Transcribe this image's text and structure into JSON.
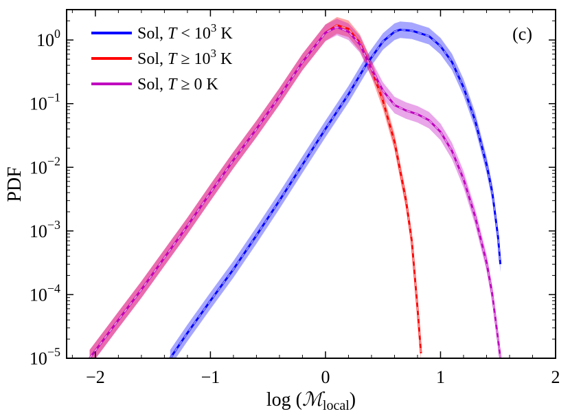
{
  "chart_data": {
    "type": "line",
    "panel_label": "(c)",
    "xlabel": "log (M_local)",
    "xlabel_main": "log (",
    "xlabel_symbol": "ℳ",
    "xlabel_sub": "local",
    "xlabel_close": ")",
    "ylabel": "PDF",
    "xlim": [
      -2.25,
      2.0
    ],
    "ylim": [
      1e-05,
      3.0
    ],
    "yscale": "log",
    "xticks": [
      {
        "value": -2,
        "label": "−2"
      },
      {
        "value": -1,
        "label": "−1"
      },
      {
        "value": 0,
        "label": "0"
      },
      {
        "value": 1,
        "label": "1"
      },
      {
        "value": 2,
        "label": "2"
      }
    ],
    "yticks": [
      {
        "value": 1,
        "base": "10",
        "exp": "0"
      },
      {
        "value": 0.1,
        "base": "10",
        "exp": "−1"
      },
      {
        "value": 0.01,
        "base": "10",
        "exp": "−2"
      },
      {
        "value": 0.001,
        "base": "10",
        "exp": "−3"
      },
      {
        "value": 0.0001,
        "base": "10",
        "exp": "−4"
      },
      {
        "value": 1e-05,
        "base": "10",
        "exp": "−5"
      }
    ],
    "legend_position": "top-left",
    "series": [
      {
        "name": "Sol, T < 10^3 K",
        "legend_prefix": "Sol, ",
        "legend_var": "T",
        "legend_rel": " < 10",
        "legend_exp": "3",
        "legend_unit": " K",
        "color": "#0000ff",
        "x": [
          -1.35,
          -1.2,
          -1.0,
          -0.8,
          -0.6,
          -0.4,
          -0.2,
          0.0,
          0.2,
          0.35,
          0.5,
          0.6,
          0.65,
          0.75,
          0.9,
          1.0,
          1.1,
          1.2,
          1.3,
          1.4,
          1.45,
          1.5,
          1.52
        ],
        "y": [
          1e-05,
          2.5e-05,
          8e-05,
          0.00025,
          0.00085,
          0.003,
          0.011,
          0.04,
          0.14,
          0.4,
          0.95,
          1.35,
          1.45,
          1.4,
          1.15,
          0.8,
          0.45,
          0.18,
          0.055,
          0.011,
          0.004,
          0.0008,
          0.0003
        ]
      },
      {
        "name": "Sol, T ≥ 10^3 K",
        "legend_prefix": "Sol, ",
        "legend_var": "T",
        "legend_rel": " ≥ 10",
        "legend_exp": "3",
        "legend_unit": " K",
        "color": "#ff0000",
        "x": [
          -2.05,
          -1.8,
          -1.6,
          -1.4,
          -1.2,
          -1.0,
          -0.8,
          -0.6,
          -0.4,
          -0.2,
          0.0,
          0.1,
          0.2,
          0.3,
          0.4,
          0.5,
          0.6,
          0.7,
          0.75,
          0.8,
          0.83
        ],
        "y": [
          1e-05,
          4e-05,
          0.00012,
          0.00038,
          0.0012,
          0.004,
          0.013,
          0.04,
          0.13,
          0.45,
          1.3,
          1.7,
          1.5,
          0.9,
          0.35,
          0.11,
          0.025,
          0.003,
          0.0007,
          6e-05,
          1.2e-05
        ]
      },
      {
        "name": "Sol, T ≥ 0 K",
        "legend_prefix": "Sol, ",
        "legend_var": "T",
        "legend_rel": " ≥ 0",
        "legend_exp": "",
        "legend_unit": " K",
        "color": "#bf00bf",
        "x": [
          -2.05,
          -1.8,
          -1.6,
          -1.4,
          -1.2,
          -1.0,
          -0.8,
          -0.6,
          -0.4,
          -0.2,
          0.0,
          0.1,
          0.2,
          0.3,
          0.4,
          0.5,
          0.6,
          0.7,
          0.8,
          0.9,
          1.0,
          1.1,
          1.2,
          1.3,
          1.4,
          1.45,
          1.5,
          1.52
        ],
        "y": [
          1e-05,
          4e-05,
          0.00012,
          0.00038,
          0.0012,
          0.004,
          0.013,
          0.04,
          0.13,
          0.45,
          1.3,
          1.6,
          1.35,
          0.85,
          0.35,
          0.16,
          0.095,
          0.078,
          0.068,
          0.055,
          0.036,
          0.018,
          0.0065,
          0.0017,
          0.00032,
          0.0001,
          2e-05,
          1e-05
        ]
      }
    ]
  }
}
